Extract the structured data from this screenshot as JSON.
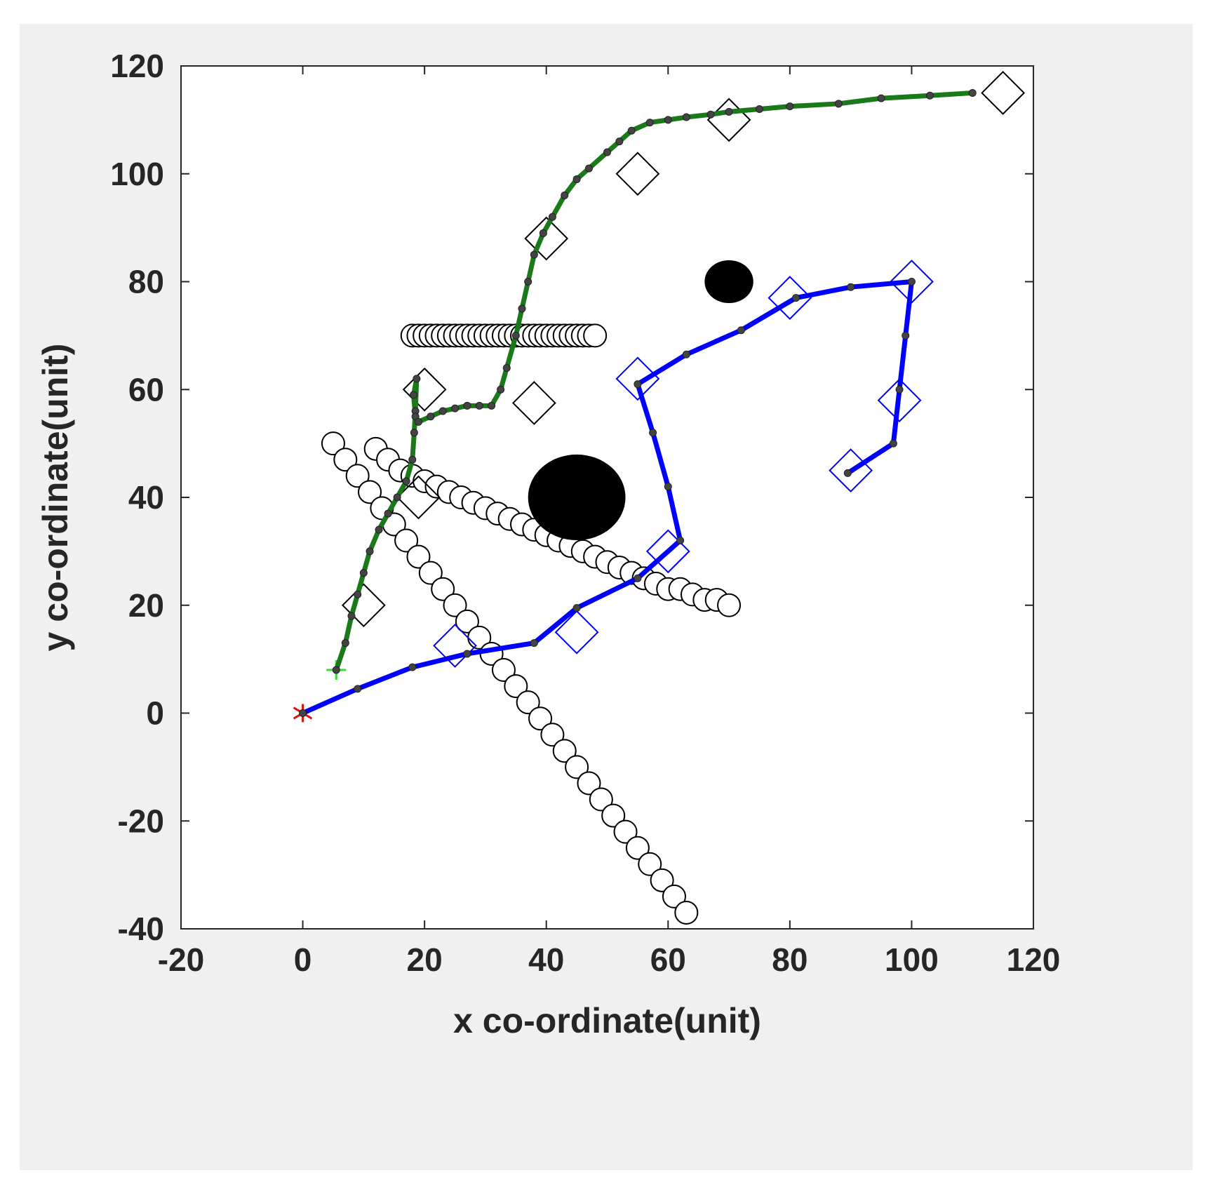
{
  "chart_data": {
    "type": "scatter",
    "title": "",
    "xlabel": "x co-ordinate(unit)",
    "ylabel": "y co-ordinate(unit)",
    "xlim": [
      -20,
      120
    ],
    "ylim": [
      -40,
      120
    ],
    "xticks": [
      -20,
      0,
      20,
      40,
      60,
      80,
      100,
      120
    ],
    "yticks": [
      -40,
      -20,
      0,
      20,
      40,
      60,
      80,
      100,
      120
    ],
    "grid": false,
    "legend": "none",
    "series": [
      {
        "style": "line",
        "color": "#1a7a1a",
        "x": [
          5.5,
          7,
          8,
          9,
          10,
          11,
          12.5,
          14,
          15.5,
          17,
          18,
          18.3,
          18.5,
          18.7,
          18.2,
          18.5,
          19,
          21,
          23,
          25,
          27,
          29,
          31,
          32.5,
          33.5,
          35,
          36,
          37,
          38,
          39.5,
          41,
          43,
          45,
          47,
          50,
          52,
          54,
          57,
          60,
          63,
          67,
          70,
          75,
          80,
          88,
          95,
          103,
          110
        ],
        "y": [
          8,
          13,
          18,
          22,
          26,
          30,
          34,
          37,
          40,
          43,
          47,
          52,
          56,
          62,
          59,
          55,
          54,
          55,
          56,
          56.5,
          57,
          57,
          57,
          60,
          64,
          70,
          75,
          80,
          85,
          89,
          92,
          96,
          99,
          101,
          104,
          106,
          108,
          109.5,
          110,
          110.5,
          111,
          111.5,
          112,
          112.5,
          113,
          114,
          114.5,
          115
        ]
      },
      {
        "style": "line",
        "color": "#0000ff",
        "x": [
          0,
          9,
          18,
          27,
          38,
          45,
          55,
          62,
          60,
          57.5,
          55,
          63,
          72,
          81,
          90,
          100,
          99,
          98,
          97,
          89.5
        ],
        "y": [
          0,
          4.5,
          8.5,
          11,
          13,
          19.5,
          25,
          32,
          42,
          52,
          61,
          66.5,
          71,
          77,
          79,
          80,
          70,
          60,
          50,
          44.5
        ]
      },
      {
        "style": "markers",
        "marker": "circle",
        "color": "#000000",
        "x": [
          5,
          7,
          9,
          11,
          13,
          15,
          17,
          19,
          21,
          23,
          25,
          27,
          29,
          31,
          33,
          35,
          37,
          39,
          41,
          43,
          45,
          47,
          49,
          51,
          53,
          55,
          57,
          59,
          61,
          63
        ],
        "y": [
          50,
          47,
          44,
          41,
          38,
          35,
          32,
          29,
          26,
          23,
          20,
          17,
          14,
          11,
          8,
          5,
          2,
          -1,
          -4,
          -7,
          -10,
          -13,
          -16,
          -19,
          -22,
          -25,
          -28,
          -31,
          -34,
          -37
        ]
      },
      {
        "style": "markers",
        "marker": "circle",
        "color": "#000000",
        "x": [
          12,
          14,
          16,
          18,
          20,
          22,
          24,
          26,
          28,
          30,
          32,
          34,
          36,
          38,
          40,
          42,
          44,
          46,
          48,
          50,
          52,
          54,
          56,
          58,
          60,
          62,
          64,
          66,
          68,
          70
        ],
        "y": [
          49,
          47,
          45,
          44,
          43,
          42,
          41,
          40,
          39,
          38,
          37,
          36,
          35,
          34,
          33,
          32,
          31,
          30,
          29,
          28,
          27,
          26,
          25,
          24,
          23,
          23,
          22,
          21,
          21,
          20
        ]
      },
      {
        "style": "markers",
        "marker": "circle",
        "color": "#000000",
        "x": [
          18,
          19,
          20,
          21,
          22,
          23,
          24,
          25,
          26,
          27,
          28,
          29,
          30,
          31,
          32,
          33,
          34,
          35,
          36,
          37,
          38,
          39,
          40,
          41,
          42,
          43,
          44,
          45,
          46,
          47,
          48
        ],
        "y": [
          70,
          70,
          70,
          70,
          70,
          70,
          70,
          70,
          70,
          70,
          70,
          70,
          70,
          70,
          70,
          70,
          70,
          70,
          70,
          70,
          70,
          70,
          70,
          70,
          70,
          70,
          70,
          70,
          70,
          70,
          70
        ]
      },
      {
        "style": "markers",
        "marker": "diamond",
        "color": "#000000",
        "x": [
          10,
          19,
          20,
          38,
          40,
          55,
          70,
          115
        ],
        "y": [
          20,
          40,
          60,
          57.5,
          88,
          100,
          110,
          115
        ]
      },
      {
        "style": "markers",
        "marker": "diamond",
        "color": "#0000ff",
        "x": [
          25,
          45,
          55,
          60,
          80,
          100,
          98,
          90
        ],
        "y": [
          12.5,
          15,
          62,
          30,
          77,
          80,
          58,
          45
        ]
      },
      {
        "style": "markers",
        "marker": "filled-circle",
        "color": "#000000",
        "x": [
          45,
          70
        ],
        "y": [
          40,
          80
        ],
        "r": [
          8,
          4
        ]
      },
      {
        "style": "markers",
        "marker": "asterisk",
        "color": "#e01010",
        "x": [
          0
        ],
        "y": [
          0
        ]
      },
      {
        "style": "markers",
        "marker": "plus",
        "color": "#33dd33",
        "x": [
          5.5
        ],
        "y": [
          8
        ]
      }
    ]
  }
}
